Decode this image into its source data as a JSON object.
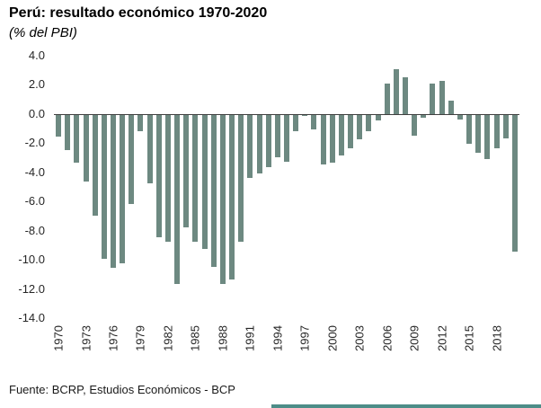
{
  "chart_data": {
    "type": "bar",
    "title": "Perú: resultado económico 1970-2020",
    "subtitle": "(% del PBI)",
    "source": "Fuente: BCRP, Estudios Económicos - BCP",
    "ylabel": "% del PBI",
    "ylim": [
      -14.0,
      4.0
    ],
    "ytick_step": 2.0,
    "grid": false,
    "legend": null,
    "bar_color": "#6d8981",
    "zero_line_color": "#3f3f3f",
    "accent_color": "#4d8d88",
    "yticks": [
      4,
      2,
      0,
      -2,
      -4,
      -6,
      -8,
      -10,
      -12,
      -14
    ],
    "ytick_labels": [
      "4.0",
      "2.0",
      "0.0",
      "-2.0",
      "-4.0",
      "-6.0",
      "-8.0",
      "-10.0",
      "-12.0",
      "-14.0"
    ],
    "x_tick_labels": [
      "1970",
      "1973",
      "1976",
      "1979",
      "1982",
      "1985",
      "1988",
      "1991",
      "1994",
      "1997",
      "2000",
      "2003",
      "2006",
      "2009",
      "2012",
      "2015",
      "2018"
    ],
    "x": [
      1970,
      1971,
      1972,
      1973,
      1974,
      1975,
      1976,
      1977,
      1978,
      1979,
      1980,
      1981,
      1982,
      1983,
      1984,
      1985,
      1986,
      1987,
      1988,
      1989,
      1990,
      1991,
      1992,
      1993,
      1994,
      1995,
      1996,
      1997,
      1998,
      1999,
      2000,
      2001,
      2002,
      2003,
      2004,
      2005,
      2006,
      2007,
      2008,
      2009,
      2010,
      2011,
      2012,
      2013,
      2014,
      2015,
      2016,
      2017,
      2018,
      2019,
      2020
    ],
    "values": [
      -1.5,
      -2.4,
      -3.3,
      -4.6,
      -6.9,
      -9.9,
      -10.5,
      -10.2,
      -6.1,
      -1.1,
      -4.7,
      -8.4,
      -8.7,
      -11.6,
      -7.7,
      -8.7,
      -9.2,
      -10.4,
      -11.6,
      -11.3,
      -8.7,
      -4.3,
      -4.0,
      -3.6,
      -2.9,
      -3.2,
      -1.1,
      -0.1,
      -1.0,
      -3.4,
      -3.3,
      -2.8,
      -2.3,
      -1.7,
      -1.1,
      -0.4,
      2.1,
      3.1,
      2.5,
      -1.4,
      -0.2,
      2.1,
      2.3,
      0.9,
      -0.3,
      -2.0,
      -2.6,
      -3.0,
      -2.3,
      -1.6,
      -9.4
    ]
  }
}
